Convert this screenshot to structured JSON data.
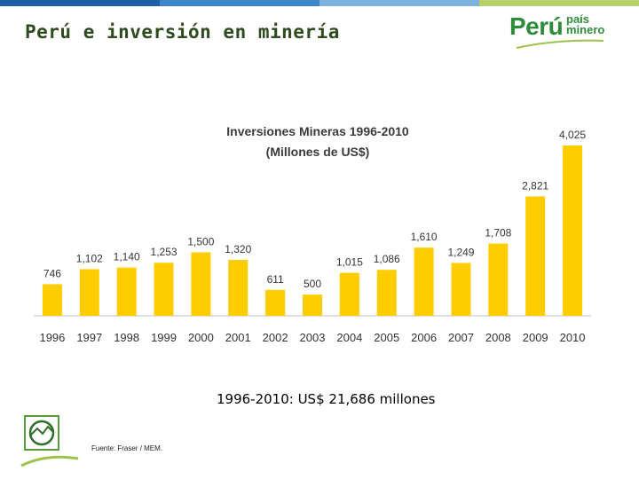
{
  "slide": {
    "title": "Perú e inversión en minería",
    "logo_text": "Perú",
    "logo_sub_line1": "país",
    "logo_sub_line2": "minero",
    "total_text": "1996-2010: US$ 21,686 millones",
    "source_text": "Fuente: Fraser / MEM."
  },
  "colors": {
    "bar": "#FFCC00",
    "title": "#2e4a1e",
    "logo_green": "#2e8b3a",
    "logo_blue": "#1f6fb2",
    "topbar": [
      "#1f5fa8",
      "#3a86c8",
      "#7fb2dc",
      "#b7d06a",
      "#6aa83c"
    ]
  },
  "chart_data": {
    "type": "bar",
    "title_line1": "Inversiones Mineras 1996-2010",
    "title_line2": "(Millones de US$)",
    "categories": [
      "1996",
      "1997",
      "1998",
      "1999",
      "2000",
      "2001",
      "2002",
      "2003",
      "2004",
      "2005",
      "2006",
      "2007",
      "2008",
      "2009",
      "2010"
    ],
    "values": [
      746,
      1102,
      1140,
      1253,
      1500,
      1320,
      611,
      500,
      1015,
      1086,
      1610,
      1249,
      1708,
      2821,
      4025
    ],
    "labels": [
      "746",
      "1,102",
      "1,140",
      "1,253",
      "1,500",
      "1,320",
      "611",
      "500",
      "1,015",
      "1,086",
      "1,610",
      "1,249",
      "1,708",
      "2,821",
      "4,025"
    ],
    "xlabel": "",
    "ylabel": "",
    "ylim": [
      0,
      4025
    ]
  }
}
